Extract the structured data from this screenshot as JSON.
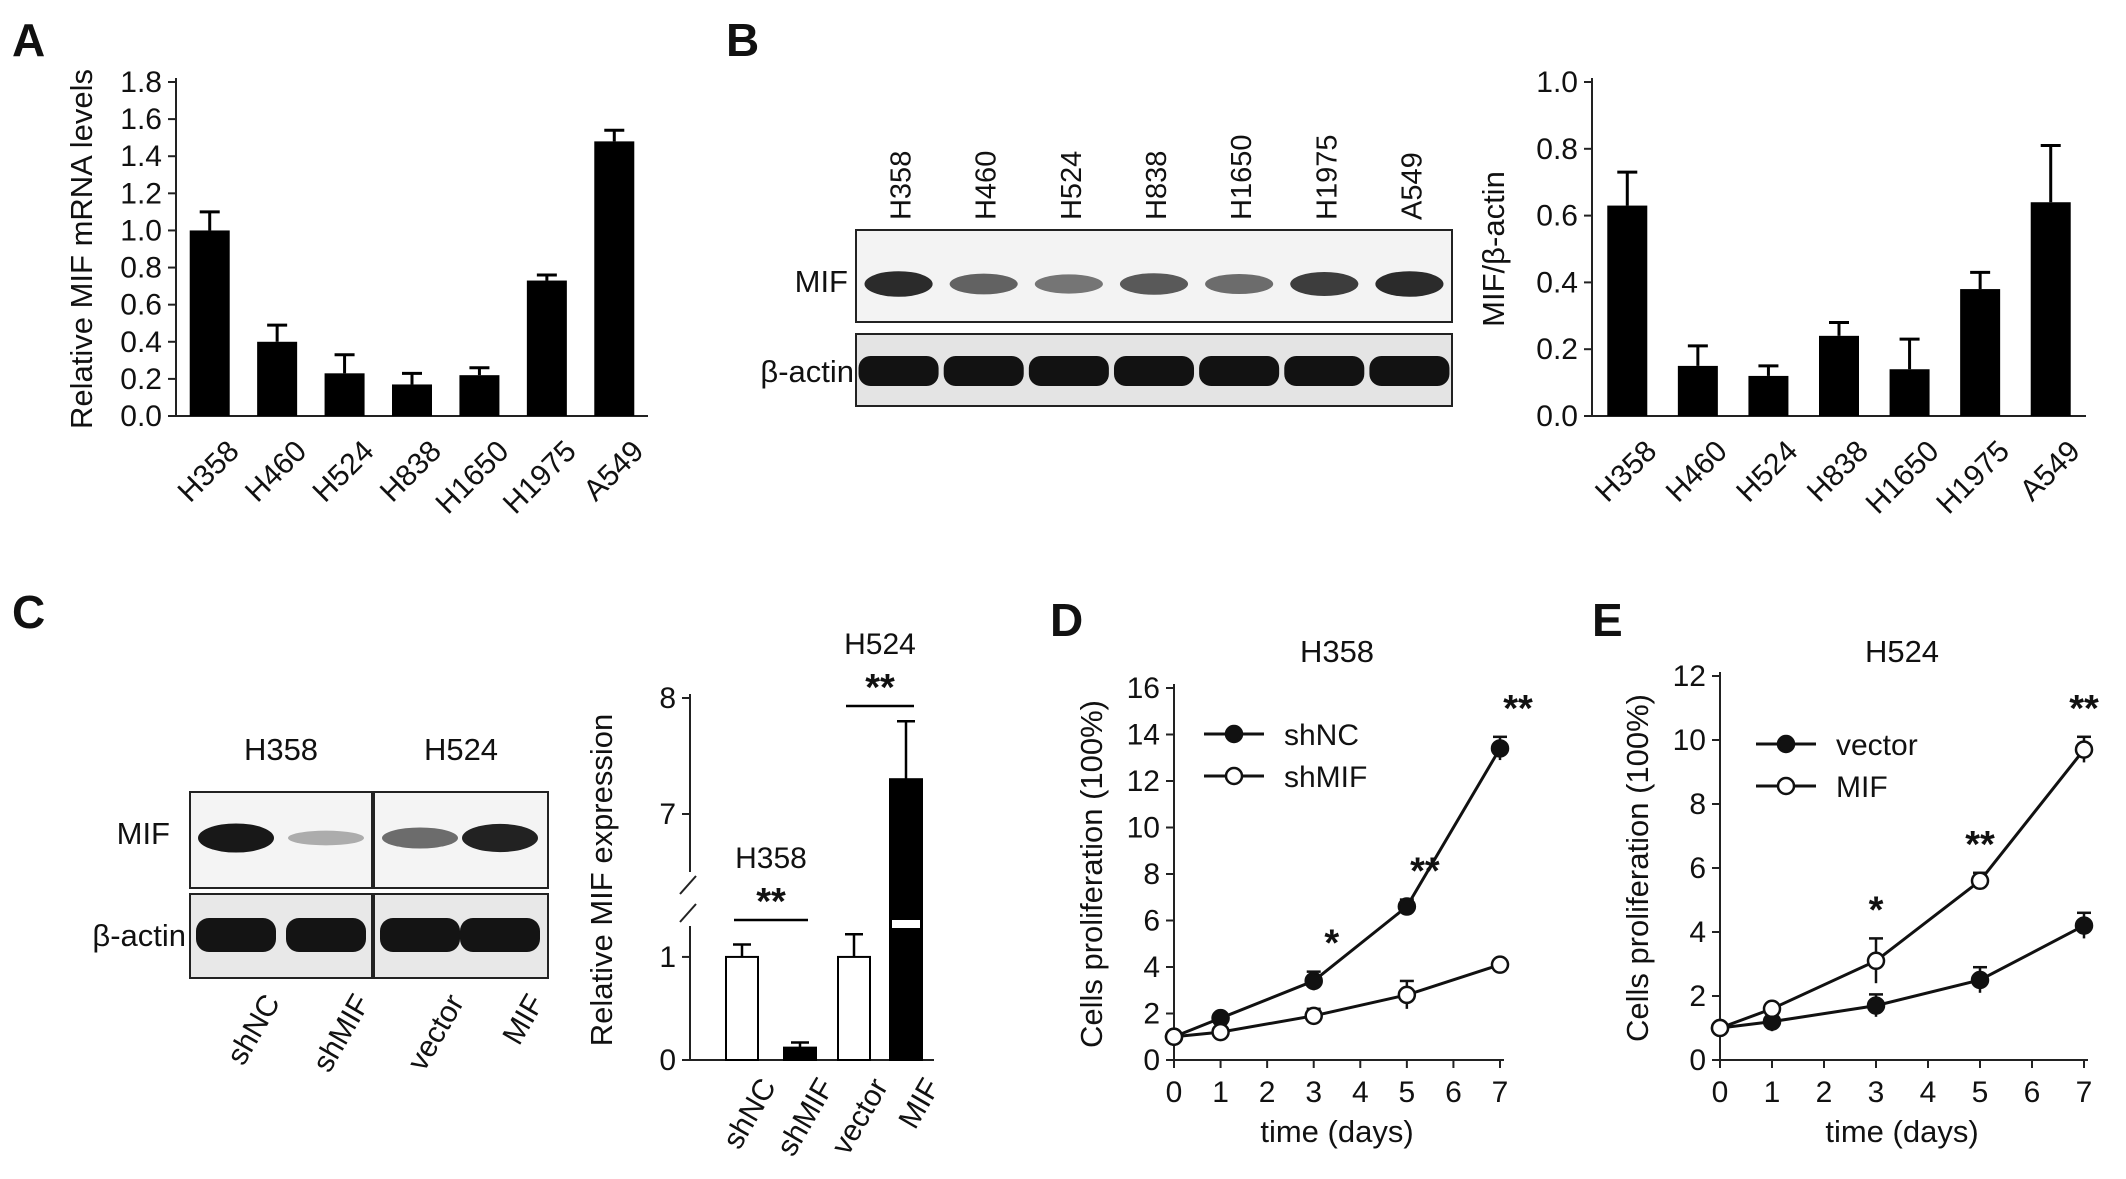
{
  "figure": {
    "panels": {
      "A": "A",
      "B": "B",
      "C": "C",
      "D": "D",
      "E": "E"
    }
  },
  "blot_B": {
    "lanes": [
      "H358",
      "H460",
      "H524",
      "H838",
      "H1650",
      "H1975",
      "A549"
    ],
    "row_labels": [
      "MIF",
      "β-actin"
    ],
    "mif_intensity": [
      0.85,
      0.55,
      0.45,
      0.6,
      0.5,
      0.75,
      0.85
    ]
  },
  "blot_C": {
    "groups": [
      "H358",
      "H524"
    ],
    "row_labels": [
      "MIF",
      "β-actin"
    ],
    "lanes": [
      "shNC",
      "shMIF",
      "vector",
      "MIF"
    ],
    "mif_intensity": [
      0.95,
      0.15,
      0.5,
      0.9
    ]
  },
  "chart_data": [
    {
      "id": "A",
      "type": "bar",
      "categories": [
        "H358",
        "H460",
        "H524",
        "H838",
        "H1650",
        "H1975",
        "A549"
      ],
      "values": [
        1.0,
        0.4,
        0.23,
        0.17,
        0.22,
        0.73,
        1.48
      ],
      "errors": [
        0.1,
        0.09,
        0.1,
        0.06,
        0.04,
        0.03,
        0.06
      ],
      "ylabel": "Relative MIF mRNA levels",
      "ylim": [
        0,
        1.8
      ],
      "yticks": [
        "0.0",
        "0.2",
        "0.4",
        "0.6",
        "0.8",
        "1.0",
        "1.2",
        "1.4",
        "1.6",
        "1.8"
      ],
      "color": "#000000"
    },
    {
      "id": "B",
      "type": "bar",
      "categories": [
        "H358",
        "H460",
        "H524",
        "H838",
        "H1650",
        "H1975",
        "A549"
      ],
      "values": [
        0.63,
        0.15,
        0.12,
        0.24,
        0.14,
        0.38,
        0.64
      ],
      "errors": [
        0.1,
        0.06,
        0.03,
        0.04,
        0.09,
        0.05,
        0.17
      ],
      "ylabel": "MIF/β-actin",
      "ylim": [
        0,
        1.0
      ],
      "yticks": [
        "0.0",
        "0.2",
        "0.4",
        "0.6",
        "0.8",
        "1.0"
      ],
      "color": "#000000"
    },
    {
      "id": "C",
      "type": "bar",
      "categories": [
        "shNC",
        "shMIF",
        "vector",
        "MIF"
      ],
      "values": [
        1.0,
        0.12,
        1.0,
        7.3
      ],
      "errors": [
        0.12,
        0.05,
        0.22,
        0.5
      ],
      "fills": [
        "#ffffff",
        "#000000",
        "#ffffff",
        "#000000"
      ],
      "ylabel": "Relative MIF expression",
      "yticks": [
        "0",
        "1",
        "7",
        "8"
      ],
      "axis_break": [
        1.3,
        6.5
      ],
      "group_labels": [
        "H358",
        "H524"
      ],
      "significance": [
        "**",
        "**"
      ]
    },
    {
      "id": "D",
      "type": "line",
      "title": "H358",
      "xlabel": "time (days)",
      "ylabel": "Cells proliferation (100%)",
      "xlim": [
        0,
        7
      ],
      "ylim": [
        0,
        16
      ],
      "xticks": [
        "0",
        "1",
        "2",
        "3",
        "4",
        "5",
        "6",
        "7"
      ],
      "yticks": [
        "0",
        "2",
        "4",
        "6",
        "8",
        "10",
        "12",
        "14",
        "16"
      ],
      "series": [
        {
          "name": "shNC",
          "marker": "filled",
          "x": [
            0,
            1,
            3,
            5,
            7
          ],
          "y": [
            1.0,
            1.8,
            3.4,
            6.6,
            13.4
          ],
          "err": [
            0.1,
            0.15,
            0.4,
            0.3,
            0.5
          ]
        },
        {
          "name": "shMIF",
          "marker": "open",
          "x": [
            0,
            1,
            3,
            5,
            7
          ],
          "y": [
            1.0,
            1.2,
            1.9,
            2.8,
            4.1
          ],
          "err": [
            0.1,
            0.1,
            0.3,
            0.6,
            0.2
          ]
        }
      ],
      "annotations": [
        {
          "x": 3,
          "text": "*"
        },
        {
          "x": 5,
          "text": "**"
        },
        {
          "x": 7,
          "text": "**"
        }
      ]
    },
    {
      "id": "E",
      "type": "line",
      "title": "H524",
      "xlabel": "time (days)",
      "ylabel": "Cells proliferation (100%)",
      "xlim": [
        0,
        7
      ],
      "ylim": [
        0,
        12
      ],
      "xticks": [
        "0",
        "1",
        "2",
        "3",
        "4",
        "5",
        "6",
        "7"
      ],
      "yticks": [
        "0",
        "2",
        "4",
        "6",
        "8",
        "10",
        "12"
      ],
      "series": [
        {
          "name": "vector",
          "marker": "filled",
          "x": [
            0,
            1,
            3,
            5,
            7
          ],
          "y": [
            1.0,
            1.2,
            1.7,
            2.5,
            4.2
          ],
          "err": [
            0.1,
            0.3,
            0.35,
            0.4,
            0.4
          ]
        },
        {
          "name": "MIF",
          "marker": "open",
          "x": [
            0,
            1,
            3,
            5,
            7
          ],
          "y": [
            1.0,
            1.6,
            3.1,
            5.6,
            9.7
          ],
          "err": [
            0.1,
            0.15,
            0.7,
            0.25,
            0.4
          ]
        }
      ],
      "annotations": [
        {
          "x": 3,
          "text": "*"
        },
        {
          "x": 5,
          "text": "**"
        },
        {
          "x": 7,
          "text": "**"
        }
      ]
    }
  ]
}
